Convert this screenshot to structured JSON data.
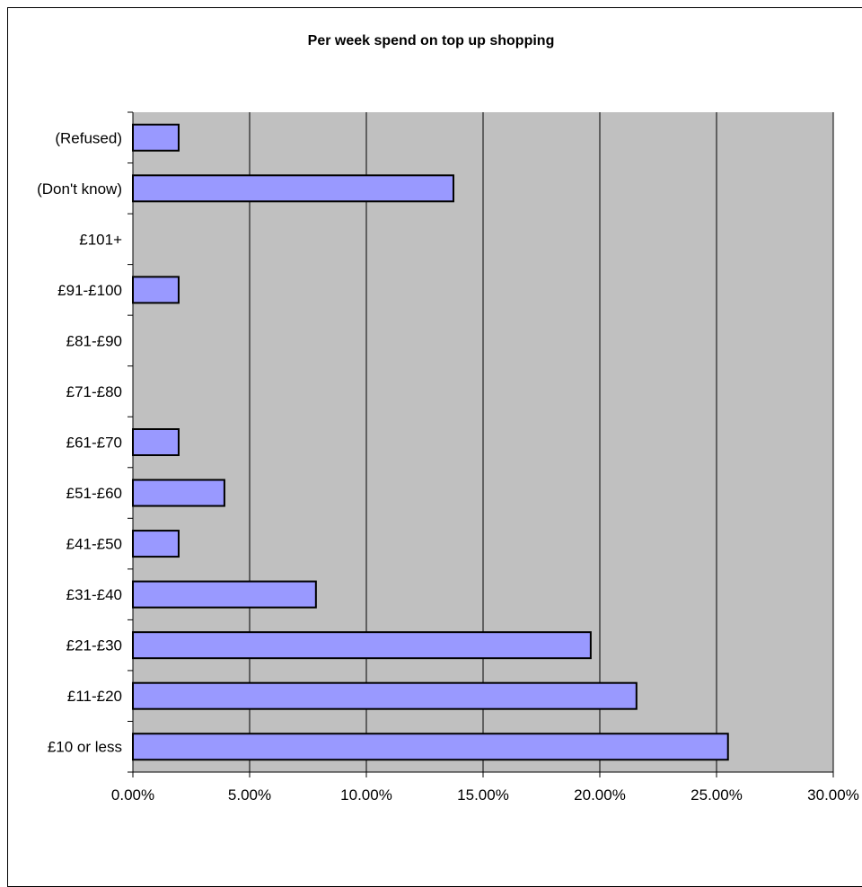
{
  "chart_data": {
    "type": "bar",
    "orientation": "horizontal",
    "title": "Per week spend on top up shopping",
    "xlabel": "",
    "ylabel": "",
    "categories": [
      "(Refused)",
      "(Don't know)",
      "£101+",
      "£91-£100",
      "£81-£90",
      "£71-£80",
      "£61-£70",
      "£51-£60",
      "£41-£50",
      "£31-£40",
      "£21-£30",
      "£11-£20",
      "£10 or less"
    ],
    "values": [
      0.0196,
      0.1373,
      0,
      0.0196,
      0,
      0,
      0.0196,
      0.0392,
      0.0196,
      0.0784,
      0.1961,
      0.2157,
      0.2549
    ],
    "xlim": [
      0,
      0.3
    ],
    "xticks": [
      0,
      0.05,
      0.1,
      0.15,
      0.2,
      0.25,
      0.3
    ],
    "xtick_labels": [
      "0.00%",
      "5.00%",
      "10.00%",
      "15.00%",
      "20.00%",
      "25.00%",
      "30.00%"
    ],
    "grid": "vertical",
    "legend": "none",
    "colors": {
      "bar_fill": "#9999ff",
      "bar_stroke": "#000000",
      "plot_background": "#c0c0c0",
      "gridline": "#000000"
    }
  }
}
